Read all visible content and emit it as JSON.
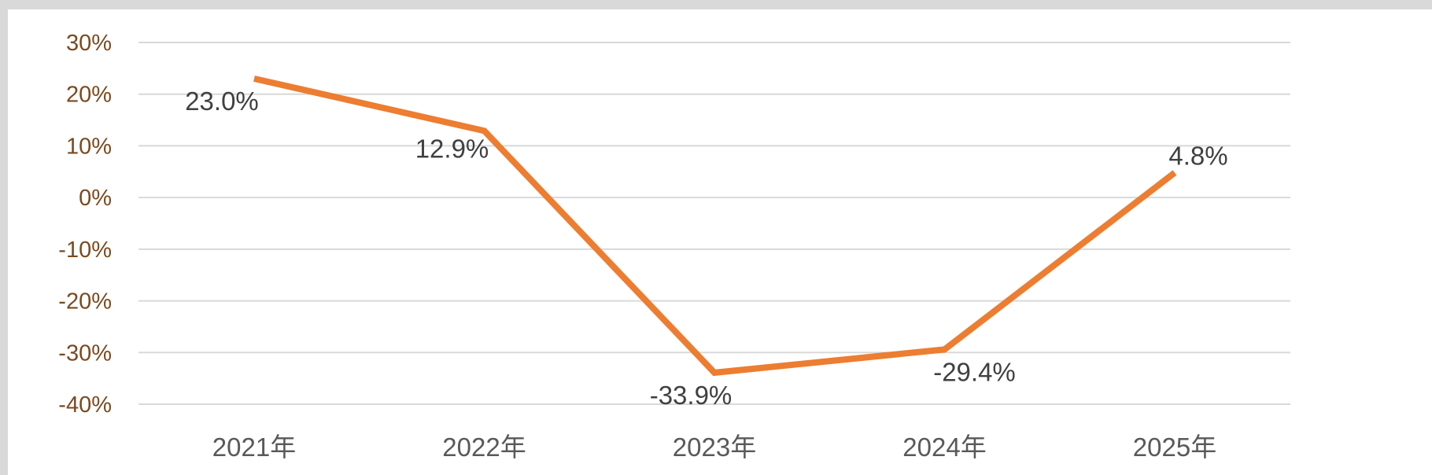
{
  "chart_data": {
    "type": "line",
    "title": "",
    "xlabel": "",
    "ylabel": "",
    "categories": [
      "2021年",
      "2022年",
      "2023年",
      "2024年",
      "2025年"
    ],
    "series": [
      {
        "values": [
          23.0,
          12.9,
          -33.9,
          -29.4,
          4.8
        ],
        "labels": [
          "23.0%",
          "12.9%",
          "-33.9%",
          "-29.4%",
          "4.8%"
        ],
        "color": "#ed7d31"
      }
    ],
    "ylim": [
      -40,
      30
    ],
    "yticks": [
      30,
      20,
      10,
      0,
      -10,
      -20,
      -30,
      -40
    ],
    "ytick_labels": [
      "30%",
      "20%",
      "10%",
      "0%",
      "-10%",
      "-20%",
      "-30%",
      "-40%"
    ],
    "grid": true,
    "legend": "none",
    "colors": {
      "line": "#ed7d31",
      "ytick_text": "#7b4a1e",
      "xtick_text": "#595959",
      "data_label_text": "#404040",
      "grid": "#d9d9d9",
      "frame": "#d9d9d9"
    }
  }
}
